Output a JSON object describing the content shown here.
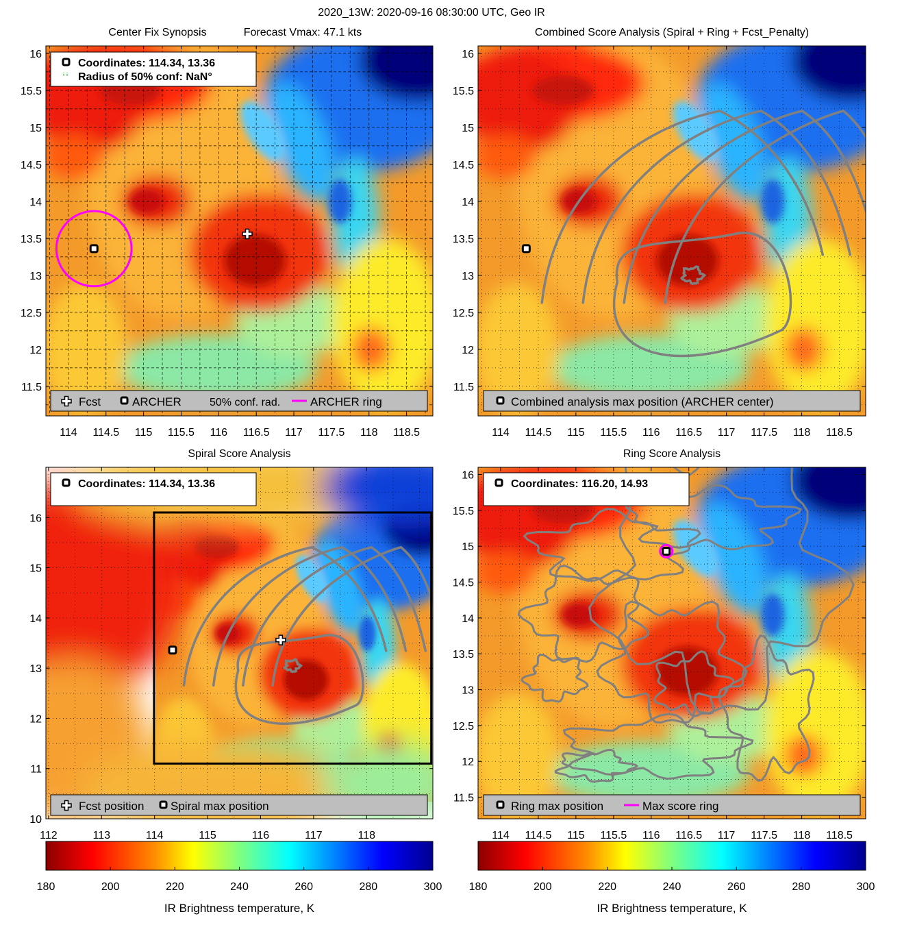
{
  "figure": {
    "title": "2020_13W: 2020-09-16 08:30:00 UTC, Geo IR"
  },
  "chart_data": [
    {
      "type": "heatmap",
      "id": "center_fix",
      "title_left": "Center Fix Synopsis",
      "title_right": "Forecast Vmax: 47.1 kts",
      "xlim": [
        113.7,
        118.85
      ],
      "ylim": [
        11.1,
        16.1
      ],
      "xticks": [
        114,
        114.5,
        115,
        115.5,
        116,
        116.5,
        117,
        117.5,
        118,
        118.5
      ],
      "xtick_labels": [
        "114",
        "114.5",
        "115",
        "115.5",
        "116",
        "116.5",
        "117",
        "117.5",
        "118",
        "118.5"
      ],
      "yticks": [
        11.5,
        12,
        12.5,
        13,
        13.5,
        14,
        14.5,
        15,
        15.5,
        16
      ],
      "ytick_labels": [
        "11.5",
        "12",
        "12.5",
        "13",
        "13.5",
        "14",
        "14.5",
        "15",
        "15.5",
        "16"
      ],
      "grid": "dashed",
      "info_lines": [
        "Coordinates: 114.34, 13.36",
        "Radius of 50% conf: NaN°"
      ],
      "legend_items": [
        "Fcst",
        "ARCHER",
        "50% conf. rad.",
        "ARCHER ring"
      ],
      "fcst": [
        116.38,
        13.56
      ],
      "archer": [
        114.34,
        13.36
      ],
      "ring_radius_deg": 0.5
    },
    {
      "type": "heatmap",
      "id": "combined",
      "title": "Combined Score Analysis (Spiral + Ring + Fcst_Penalty)",
      "xlim": [
        113.7,
        118.85
      ],
      "ylim": [
        11.1,
        16.1
      ],
      "xticks": [
        114,
        114.5,
        115,
        115.5,
        116,
        116.5,
        117,
        117.5,
        118,
        118.5
      ],
      "xtick_labels": [
        "114",
        "114.5",
        "115",
        "115.5",
        "116",
        "116.5",
        "117",
        "117.5",
        "118",
        "118.5"
      ],
      "yticks": [
        11.5,
        12,
        12.5,
        13,
        13.5,
        14,
        14.5,
        15,
        15.5,
        16
      ],
      "ytick_labels": [
        "11.5",
        "12",
        "12.5",
        "13",
        "13.5",
        "14",
        "14.5",
        "15",
        "15.5",
        "16"
      ],
      "grid": "dotted",
      "legend_items": [
        "Combined analysis max position (ARCHER center)"
      ],
      "archer": [
        114.34,
        13.36
      ]
    },
    {
      "type": "heatmap",
      "id": "spiral",
      "title": "Spiral Score Analysis",
      "xlim": [
        111.95,
        119.25
      ],
      "ylim": [
        10.0,
        17.0
      ],
      "xticks": [
        112,
        113,
        114,
        115,
        116,
        117,
        118
      ],
      "xtick_labels": [
        "112",
        "113",
        "114",
        "115",
        "116",
        "117",
        "118"
      ],
      "yticks": [
        10,
        11,
        12,
        13,
        14,
        15,
        16
      ],
      "ytick_labels": [
        "10",
        "11",
        "12",
        "13",
        "14",
        "15",
        "16"
      ],
      "grid": "dotted",
      "info_lines": [
        "Coordinates: 114.34, 13.36"
      ],
      "legend_items": [
        "Fcst position",
        "Spiral max position"
      ],
      "fcst": [
        116.38,
        13.56
      ],
      "archer": [
        114.34,
        13.36
      ],
      "box": {
        "lon": [
          113.99,
          119.22
        ],
        "lat": [
          11.1,
          16.1
        ]
      }
    },
    {
      "type": "heatmap",
      "id": "ring",
      "title": "Ring Score Analysis",
      "xlim": [
        113.7,
        118.85
      ],
      "ylim": [
        11.2,
        16.1
      ],
      "xticks": [
        114,
        114.5,
        115,
        115.5,
        116,
        116.5,
        117,
        117.5,
        118,
        118.5
      ],
      "xtick_labels": [
        "114",
        "114.5",
        "115",
        "115.5",
        "116",
        "116.5",
        "117",
        "117.5",
        "118",
        "118.5"
      ],
      "yticks": [
        11.5,
        12,
        12.5,
        13,
        13.5,
        14,
        14.5,
        15,
        15.5,
        16
      ],
      "ytick_labels": [
        "11.5",
        "12",
        "12.5",
        "13",
        "13.5",
        "14",
        "14.5",
        "15",
        "15.5",
        "16"
      ],
      "grid": "dotted",
      "info_lines": [
        "Coordinates: 116.20, 14.93"
      ],
      "legend_items": [
        "Ring max position",
        "Max score ring"
      ],
      "ringmax": [
        116.2,
        14.93
      ]
    }
  ],
  "colorbar": {
    "label": "IR Brightness temperature, K",
    "range": [
      180,
      300
    ],
    "ticks": [
      180,
      200,
      220,
      240,
      260,
      280,
      300
    ],
    "tick_labels": [
      "180",
      "200",
      "220",
      "240",
      "260",
      "280",
      "300"
    ]
  },
  "colors": {
    "scale": [
      "#8b0000",
      "#ff0000",
      "#ff8c00",
      "#ffff00",
      "#7fff7f",
      "#00ffff",
      "#0080ff",
      "#0000ff",
      "#00008f"
    ],
    "ring": "#ff00ff",
    "contour": "#808080",
    "legend_bg": "#bebebe"
  }
}
